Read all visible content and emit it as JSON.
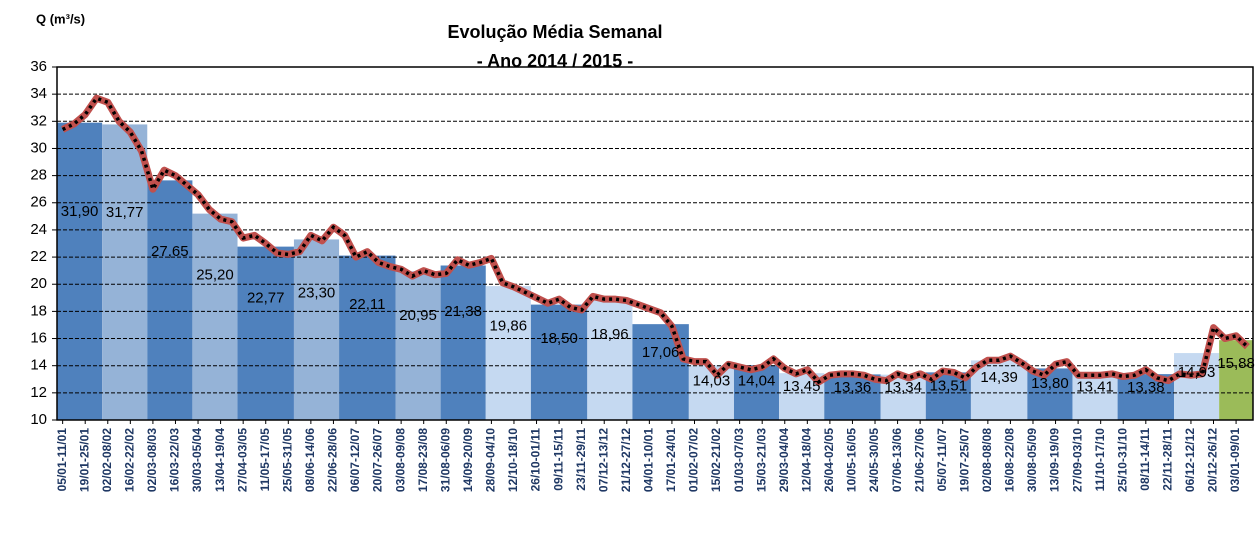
{
  "chart_data": {
    "type": "bar-line",
    "title": "Evolução Média Semanal",
    "subtitle": "- Ano 2014 / 2015 -",
    "y_label": "Q (m³/s)",
    "ylim": [
      10,
      36
    ],
    "yticks": [
      10,
      12,
      14,
      16,
      18,
      20,
      22,
      24,
      26,
      28,
      30,
      32,
      34,
      36
    ],
    "grid": true,
    "categories": [
      "05/01-11/01",
      null,
      "19/01-25/01",
      null,
      "02/02-08/02",
      null,
      "16/02-22/02",
      null,
      "02/03-08/03",
      null,
      "16/03-22/03",
      null,
      "30/03-05/04",
      null,
      "13/04-19/04",
      null,
      "27/04-03/05",
      null,
      "11/05-17/05",
      null,
      "25/05-31/05",
      null,
      "08/06-14/06",
      null,
      "22/06-28/06",
      null,
      "06/07-12/07",
      null,
      "20/07-26/07",
      null,
      "03/08-09/08",
      null,
      "17/08-23/08",
      null,
      "31/08-06/09",
      null,
      "14/09-20/09",
      null,
      "28/09-04/10",
      null,
      "12/10-18/10",
      null,
      "26/10-01/11",
      null,
      "09/11-15/11",
      null,
      "23/11-29/11",
      null,
      "07/12-13/12",
      null,
      "21/12-27/12",
      null,
      "04/01-10/01",
      null,
      "17/01-24/01",
      null,
      "01/02-07/02",
      null,
      "15/02-21/02",
      null,
      "01/03-07/03",
      null,
      "15/03-21/03",
      null,
      "29/03-04/04",
      null,
      "12/04-18/04",
      null,
      "26/04-02/05",
      null,
      "10/05-16/05",
      null,
      "24/05-30/05",
      null,
      "07/06-13/06",
      null,
      "21/06-27/06",
      null,
      "05/07-11/07",
      null,
      "19/07-25/07",
      null,
      "02/08-08/08",
      null,
      "16/08-22/08",
      null,
      "30/08-05/09",
      null,
      "13/09-19/09",
      null,
      "27/09-03/10",
      null,
      "11/10-17/10",
      null,
      "25/10-31/10",
      null,
      "08/11-14/11",
      null,
      "22/11-28/11",
      null,
      "06/12-12/12",
      null,
      "20/12-26/12",
      null,
      "03/01-09/01",
      null
    ],
    "bars": {
      "bins": [
        0,
        4,
        8,
        12,
        16,
        21,
        25,
        30,
        34,
        38,
        42,
        47,
        51,
        56,
        60,
        64,
        68,
        73,
        77,
        81,
        86,
        90,
        94,
        99,
        103,
        106
      ],
      "values": [
        31.9,
        31.77,
        27.65,
        25.2,
        22.77,
        23.3,
        22.11,
        20.95,
        21.38,
        19.86,
        18.5,
        18.96,
        17.06,
        14.03,
        14.04,
        13.45,
        13.36,
        13.34,
        13.51,
        14.39,
        13.8,
        13.41,
        13.38,
        14.93,
        15.88
      ],
      "value_labels": [
        "31,90",
        "31,77",
        "27,65",
        "25,20",
        "22,77",
        "23,30",
        "22,11",
        "20,95",
        "21,38",
        "19,86",
        "18,50",
        "18,96",
        "17,06",
        "14,03",
        "14,04",
        "13,45",
        "13,36",
        "13,34",
        "13,51",
        "14,39",
        "13,80",
        "13,41",
        "13,38",
        "14,93",
        "15,88"
      ],
      "colors": [
        "#4f81bd",
        "#95b3d7",
        "#4f81bd",
        "#95b3d7",
        "#4f81bd",
        "#95b3d7",
        "#4f81bd",
        "#95b3d7",
        "#4f81bd",
        "#c5d9f1",
        "#4f81bd",
        "#c5d9f1",
        "#4f81bd",
        "#c5d9f1",
        "#4f81bd",
        "#c5d9f1",
        "#4f81bd",
        "#c5d9f1",
        "#4f81bd",
        "#c5d9f1",
        "#4f81bd",
        "#c5d9f1",
        "#4f81bd",
        "#c5d9f1",
        "#9bbb59"
      ]
    },
    "line": {
      "color": "#c0504d",
      "values": [
        31.4,
        31.8,
        32.5,
        33.7,
        33.4,
        32.0,
        31.2,
        29.8,
        27.0,
        28.4,
        28.0,
        27.3,
        26.6,
        25.5,
        24.8,
        24.6,
        23.4,
        23.6,
        23.0,
        22.3,
        22.2,
        22.4,
        23.6,
        23.2,
        24.2,
        23.6,
        22.0,
        22.4,
        21.6,
        21.3,
        21.1,
        20.6,
        21.0,
        20.7,
        20.8,
        21.8,
        21.4,
        21.6,
        21.9,
        20.1,
        19.8,
        19.4,
        19.0,
        18.6,
        18.9,
        18.3,
        18.1,
        19.1,
        18.9,
        18.9,
        18.8,
        18.5,
        18.2,
        17.9,
        16.9,
        14.5,
        14.3,
        14.3,
        13.3,
        14.1,
        13.9,
        13.7,
        13.9,
        14.5,
        13.8,
        13.4,
        13.7,
        12.8,
        13.3,
        13.4,
        13.4,
        13.3,
        13.0,
        12.9,
        13.4,
        13.1,
        13.4,
        13.0,
        13.6,
        13.5,
        13.1,
        13.9,
        14.4,
        14.4,
        14.7,
        14.2,
        13.6,
        13.3,
        14.1,
        14.3,
        13.3,
        13.3,
        13.3,
        13.4,
        13.2,
        13.3,
        13.7,
        13.1,
        12.9,
        13.4,
        13.3,
        13.4,
        16.8,
        16.0,
        16.2,
        15.4
      ]
    }
  }
}
